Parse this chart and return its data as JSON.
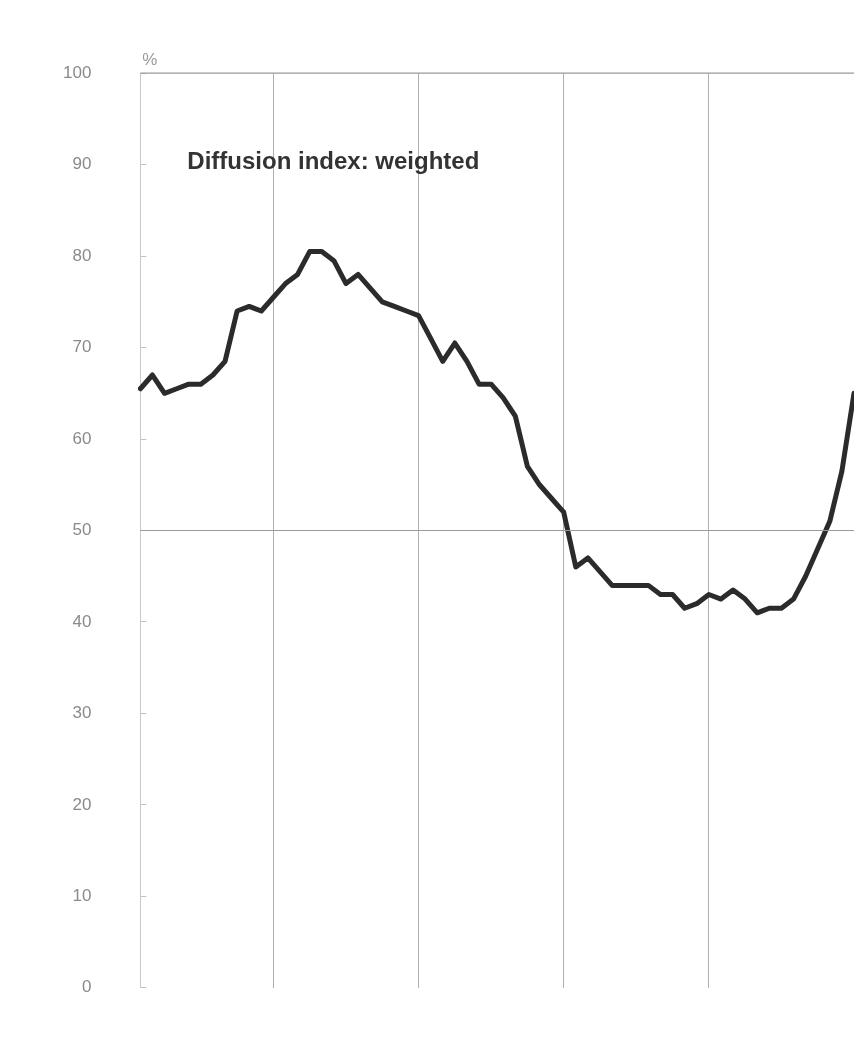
{
  "chart_data": {
    "type": "line",
    "ylabel": "%",
    "annotations": [
      "Diffusion index: weighted"
    ],
    "categories": [
      null,
      null,
      null,
      null,
      null,
      null,
      null,
      null,
      null,
      null,
      null,
      null,
      null,
      null,
      null,
      null,
      null,
      null,
      null,
      null,
      null,
      null,
      null,
      null,
      null,
      null,
      null,
      null,
      null,
      null,
      null,
      null,
      null,
      null,
      null,
      null,
      null,
      null,
      null,
      null,
      null,
      null,
      null,
      null,
      null,
      null,
      null,
      null,
      null,
      null,
      null,
      null,
      null,
      null,
      null,
      null,
      null,
      null,
      null,
      null
    ],
    "series": [
      {
        "color": "#2b2b2b",
        "values": [
          65.5,
          67,
          65,
          65.5,
          66,
          66,
          67,
          68.5,
          74,
          74.5,
          74,
          75.5,
          77,
          78,
          80.5,
          80.5,
          79.5,
          77,
          78,
          76.5,
          75,
          74.5,
          74,
          73.5,
          71,
          68.5,
          70.5,
          68.5,
          66,
          66,
          64.5,
          62.5,
          57,
          55,
          53.5,
          52,
          46,
          47,
          45.5,
          44,
          44,
          44,
          44,
          43,
          43,
          41.5,
          42,
          43,
          42.5,
          43.5,
          42.5,
          41,
          41.5,
          41.5,
          42.5,
          45,
          48,
          51,
          56.5,
          65
        ]
      }
    ],
    "ylim": [
      0,
      100
    ],
    "yticks": [
      0,
      10,
      20,
      30,
      40,
      50,
      60,
      70,
      80,
      90,
      100
    ],
    "tick_labels": "y",
    "grid": "x",
    "legend": false,
    "marker": "none",
    "line_style": "solid",
    "ref_lines": [
      {
        "axis": "y",
        "value": 50
      },
      {
        "axis": "y",
        "value": 100
      }
    ]
  }
}
